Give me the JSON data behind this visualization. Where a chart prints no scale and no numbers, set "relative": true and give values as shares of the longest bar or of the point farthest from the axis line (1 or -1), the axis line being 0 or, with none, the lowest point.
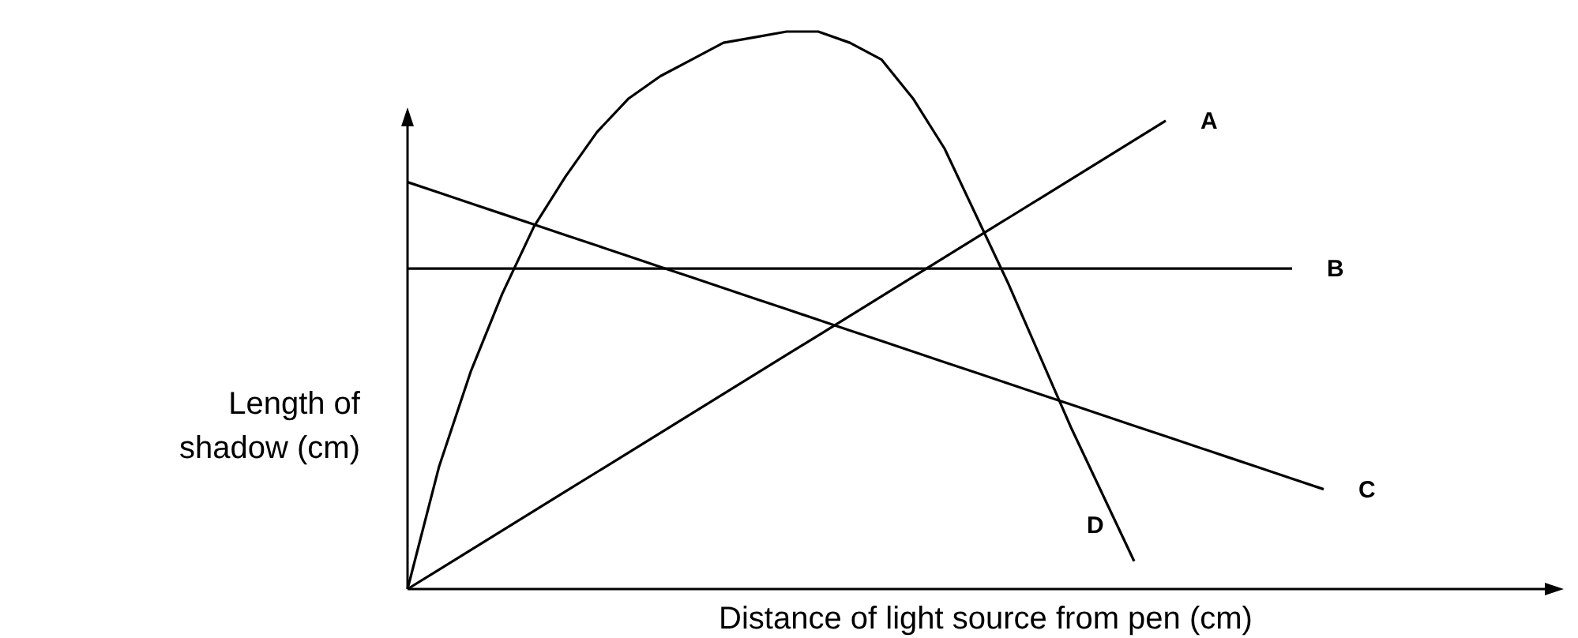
{
  "chart_data": {
    "type": "line",
    "relative": true,
    "xlabel": "Distance of light source from pen (cm)",
    "ylabel": "Length of shadow (cm)",
    "categories": [
      null,
      null,
      null,
      null,
      null,
      null,
      null,
      null,
      null,
      null,
      null,
      null,
      null,
      null,
      null,
      null,
      null,
      null,
      null,
      null,
      null,
      null,
      null,
      null,
      null,
      null,
      null,
      null,
      null,
      null,
      null,
      null,
      null,
      null,
      null,
      null,
      null
    ],
    "series": [
      {
        "name": "A",
        "color": "#000000",
        "values": [
          0,
          0.035,
          0.07,
          0.105,
          0.14,
          0.175,
          0.21,
          0.245,
          0.28,
          0.315,
          0.35,
          0.385,
          0.42,
          0.455,
          0.49,
          0.525,
          0.56,
          0.595,
          0.63,
          0.665,
          0.7,
          0.735,
          0.77,
          0.805,
          0.84,
          null,
          null,
          null,
          null,
          null,
          null,
          null,
          null,
          null,
          null,
          null,
          null
        ]
      },
      {
        "name": "B",
        "color": "#000000",
        "values": [
          0.575,
          0.575,
          0.575,
          0.575,
          0.575,
          0.575,
          0.575,
          0.575,
          0.575,
          0.575,
          0.575,
          0.575,
          0.575,
          0.575,
          0.575,
          0.575,
          0.575,
          0.575,
          0.575,
          0.575,
          0.575,
          0.575,
          0.575,
          0.575,
          0.575,
          0.575,
          0.575,
          0.575,
          0.575,
          null,
          null,
          null,
          null,
          null,
          null,
          null,
          null
        ]
      },
      {
        "name": "C",
        "color": "#000000",
        "values": [
          0.73,
          0.711,
          0.692,
          0.673,
          0.654,
          0.635,
          0.616,
          0.597,
          0.578,
          0.559,
          0.54,
          0.521,
          0.502,
          0.483,
          0.464,
          0.445,
          0.426,
          0.407,
          0.388,
          0.369,
          0.35,
          0.331,
          0.312,
          0.293,
          0.274,
          0.255,
          0.236,
          0.217,
          0.198,
          0.179,
          null,
          null,
          null,
          null,
          null,
          null,
          null
        ]
      },
      {
        "name": "D",
        "color": "#000000",
        "values": [
          0,
          0.22,
          0.39,
          0.53,
          0.65,
          0.74,
          0.82,
          0.88,
          0.92,
          0.95,
          0.98,
          0.99,
          1.0,
          1.0,
          0.98,
          0.95,
          0.88,
          0.79,
          0.67,
          0.55,
          0.42,
          0.29,
          0.17,
          0.05,
          null,
          null,
          null,
          null,
          null,
          null,
          null,
          null,
          null,
          null,
          null,
          null,
          null
        ]
      }
    ],
    "marker": "none",
    "line_style": "solid",
    "grid": false
  }
}
